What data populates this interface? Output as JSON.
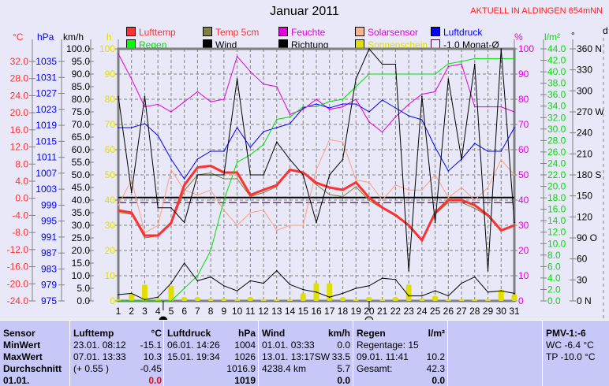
{
  "title": "Januar 2011",
  "aktuell": "AKTUELL IN ALDINGEN 654mNN",
  "axis_units": {
    "temp": "°C",
    "pressure": "hPa",
    "wind": "km/h",
    "sun": "h",
    "humidity": "%",
    "rain": "l/m²",
    "direction": "°",
    "d": "d"
  },
  "legend": [
    {
      "label": "Lufttemp",
      "color": "#ff3030",
      "text_color": "#ff3030"
    },
    {
      "label": "Temp 5cm",
      "color": "#808040",
      "text_color": "#ff3030"
    },
    {
      "label": "Feuchte",
      "color": "#e000e0",
      "text_color": "#e000e0"
    },
    {
      "label": "Solarsensor",
      "color": "#ffb090",
      "text_color": "#e000e0"
    },
    {
      "label": "Luftdruck",
      "color": "#0000ff",
      "text_color": "#0000ff"
    },
    {
      "label": "Regen",
      "color": "#00ff00",
      "text_color": "#00e000"
    },
    {
      "label": "Wind",
      "color": "#000000",
      "text_color": "#000000"
    },
    {
      "label": "Richtung",
      "color": "#000000",
      "text_color": "#000000"
    },
    {
      "label": "Sonnenschein",
      "color": "#e0e000",
      "text_color": "#e0e000"
    },
    {
      "label": "-1.0 Monat-Ø",
      "color": "#e8e8f8",
      "text_color": "#000000"
    }
  ],
  "ticks": {
    "temp": [
      "32.0",
      "28.0",
      "24.0",
      "20.0",
      "16.0",
      "12.0",
      "8.0",
      "4.0",
      "0.0",
      "-4.0",
      "-8.0",
      "-12.0",
      "-16.0",
      "-20.0",
      "-24.0"
    ],
    "pressure": [
      "1035",
      "1031",
      "1027",
      "1023",
      "1019",
      "1015",
      "1011",
      "1007",
      "1003",
      "999",
      "995",
      "991",
      "987",
      "983",
      "979",
      "975"
    ],
    "wind": [
      "100.0",
      "95.0",
      "90.0",
      "85.0",
      "80.0",
      "75.0",
      "70.0",
      "65.0",
      "60.0",
      "55.0",
      "50.0",
      "45.0",
      "40.0",
      "35.0",
      "30.0",
      "25.0",
      "20.0",
      "15.0",
      "10.0",
      "5.0",
      "0.0"
    ],
    "sun": [
      "100",
      "90",
      "80",
      "70",
      "60",
      "50",
      "40",
      "30",
      "20",
      "10",
      "0"
    ],
    "humidity": [
      "100",
      "90",
      "80",
      "70",
      "60",
      "50",
      "40",
      "30",
      "20",
      "10",
      "0"
    ],
    "rain": [
      "44.0",
      "42.0",
      "40.0",
      "38.0",
      "36.0",
      "34.0",
      "32.0",
      "30.0",
      "28.0",
      "26.0",
      "24.0",
      "22.0",
      "20.0",
      "18.0",
      "16.0",
      "14.0",
      "12.0",
      "10.0",
      "8.0",
      "6.0",
      "4.0",
      "2.0",
      "0.0"
    ],
    "direction": [
      "360 N",
      "330",
      "300",
      "270 W",
      "240",
      "210",
      "180 S",
      "150",
      "120",
      "90  O",
      "60",
      "30",
      "0    N"
    ]
  },
  "chart_data": {
    "type": "line",
    "x": [
      1,
      2,
      3,
      4,
      5,
      6,
      7,
      8,
      9,
      10,
      11,
      12,
      13,
      14,
      15,
      16,
      17,
      18,
      19,
      20,
      21,
      22,
      23,
      24,
      25,
      26,
      27,
      28,
      29,
      30,
      31
    ],
    "series": [
      {
        "name": "Feuchte",
        "unit": "%",
        "range": [
          0,
          100
        ],
        "color": "#e000e0",
        "values": [
          98,
          88,
          77,
          78,
          75,
          79,
          83,
          79,
          80,
          97,
          91,
          86,
          85,
          74,
          76,
          80,
          76,
          77,
          80,
          71,
          67,
          73,
          78,
          82,
          83,
          93,
          94,
          77,
          77,
          77,
          75
        ]
      },
      {
        "name": "Luftdruck",
        "unit": "hPa",
        "range": [
          975,
          1039
        ],
        "color": "#0000ff",
        "values": [
          1019,
          1019,
          1020,
          1017,
          1011,
          1006,
          1011,
          1013,
          1013,
          1019,
          1014,
          1018,
          1019,
          1020,
          1024,
          1025,
          1024,
          1025,
          1025,
          1023,
          1026,
          1024,
          1022,
          1021,
          1014,
          1008,
          1011,
          1015,
          1013,
          1013,
          1019
        ]
      },
      {
        "name": "Solarsensor",
        "unit": "%",
        "range": [
          0,
          100
        ],
        "color": "#ffa080",
        "values": [
          38,
          48,
          27,
          30,
          52,
          44,
          42,
          44,
          36,
          30,
          35,
          36,
          28,
          30,
          30,
          52,
          64,
          63,
          48,
          47,
          40,
          46,
          44,
          44,
          50,
          41,
          45,
          40,
          45,
          56,
          50
        ]
      },
      {
        "name": "Temp 5cm",
        "unit": "°C",
        "range": [
          -24,
          40
        ],
        "color": "#808040",
        "values": [
          -1.5,
          -2.0,
          -8.0,
          -7.5,
          -4.5,
          4.0,
          8.0,
          8.5,
          7.0,
          7.0,
          2.5,
          3.5,
          5.0,
          9.5,
          8.5,
          5.5,
          3.0,
          2.5,
          5.0,
          1.5,
          -0.5,
          -2.5,
          -5.0,
          -8.5,
          -2.0,
          1.0,
          1.0,
          -0.5,
          -2.5,
          -6.0,
          -4.8
        ]
      },
      {
        "name": "Lufttemp",
        "unit": "°C",
        "range": [
          -24,
          40
        ],
        "color": "#ff3030",
        "values": [
          -1.0,
          -1.6,
          -7.4,
          -7.4,
          -4.2,
          5.4,
          9.9,
          10.3,
          8.6,
          8.6,
          2.9,
          4.2,
          5.4,
          9.3,
          8.6,
          6.0,
          4.8,
          4.2,
          6.1,
          2.2,
          -0.3,
          -2.2,
          -4.8,
          -8.6,
          -1.6,
          1.6,
          1.6,
          0.3,
          -2.2,
          -6.1,
          -4.8
        ]
      },
      {
        "name": "Regen",
        "unit": "l/m²",
        "range": [
          0,
          44
        ],
        "color": "#00e000",
        "values": [
          0,
          0,
          0,
          0,
          0,
          2.2,
          4.4,
          8.8,
          17.6,
          24.2,
          25.5,
          27.3,
          31.7,
          32.1,
          33.9,
          33.9,
          34.8,
          35.2,
          37.4,
          39.6,
          39.6,
          39.6,
          39.6,
          39.6,
          39.6,
          41.4,
          41.8,
          42.3,
          42.3,
          42.3,
          42.3
        ]
      },
      {
        "name": "Richtung",
        "unit": "°",
        "range": [
          0,
          360
        ],
        "color": "#000000",
        "values": [
          292,
          155,
          292,
          133,
          133,
          112,
          180,
          180,
          180,
          317,
          180,
          180,
          227,
          202,
          180,
          112,
          180,
          202,
          317,
          360,
          338,
          338,
          43,
          292,
          112,
          317,
          202,
          338,
          43,
          360,
          112
        ]
      },
      {
        "name": "Wind",
        "unit": "km/h",
        "range": [
          0,
          100
        ],
        "color": "#000000",
        "values": [
          2.5,
          3,
          0.5,
          1.5,
          7,
          15,
          8,
          9.5,
          6,
          4,
          8,
          7,
          12,
          6.5,
          4.5,
          3.5,
          1.5,
          3,
          5,
          6,
          9,
          8.5,
          2,
          2,
          4,
          2,
          7,
          9.5,
          3.5,
          4,
          3
        ]
      }
    ],
    "bars": {
      "name": "Sonnenschein",
      "unit": "h",
      "range": [
        0,
        100
      ],
      "color": "#e0e000",
      "values": [
        0.5,
        3,
        6.5,
        1,
        6,
        1.5,
        1.5,
        1,
        1,
        0.5,
        1.5,
        0.5,
        0.5,
        0.5,
        3,
        7,
        7,
        1.5,
        0.5,
        1.5,
        0.5,
        1.5,
        6.5,
        1,
        2,
        0.5,
        0.5,
        0.5,
        0.5,
        4.5,
        2.5
      ]
    },
    "hlines": [
      {
        "name": "Lufttemp Monatsmittel",
        "value_percent": 41,
        "style": "solid"
      },
      {
        "name": "-1.0 Monat-Ø",
        "value_percent": 39,
        "style": "dashed"
      }
    ],
    "moon": [
      {
        "phase": "new",
        "day": 4.4
      },
      {
        "phase": "full",
        "day": 20
      }
    ]
  },
  "table": {
    "sensor": {
      "head": "Sensor",
      "rows": [
        "MinWert",
        "MaxWert",
        "Durchschnitt",
        "01.01."
      ]
    },
    "lufttemp": {
      "head": "Lufttemp",
      "unit": "°C",
      "rows": [
        [
          "23.01.  08:12",
          "-15.1"
        ],
        [
          "07.01.  13:33",
          "10.3"
        ],
        [
          "(+ 0.55 )",
          "-0.45"
        ],
        [
          "",
          "0.0"
        ]
      ]
    },
    "luftdruck": {
      "head": "Luftdruck",
      "unit": "hPa",
      "rows": [
        [
          "06.01.  14:26",
          "1004"
        ],
        [
          "15.01.  19:34",
          "1026"
        ],
        [
          "",
          "1016.9"
        ],
        [
          "",
          "1019"
        ]
      ]
    },
    "wind": {
      "head": "Wind",
      "unit": "km/h",
      "rows": [
        [
          "01.01.  03:33",
          "0.0"
        ],
        [
          "13.01.  13:17SW",
          "33.5"
        ],
        [
          "4238.4 km",
          "5.7"
        ],
        [
          "",
          "0.0"
        ]
      ]
    },
    "regen": {
      "head": "Regen",
      "unit": "l/m²",
      "rows": [
        [
          "Regentage: 15",
          ""
        ],
        [
          "09.01.  11:41",
          "10.2"
        ],
        [
          "Gesamt:",
          "42.3"
        ],
        [
          "",
          "0.0"
        ]
      ]
    },
    "pmv": {
      "head": "PMV-1:-6",
      "rows": [
        "WC -6.4 °C",
        "TP -10.0 °C"
      ]
    }
  }
}
